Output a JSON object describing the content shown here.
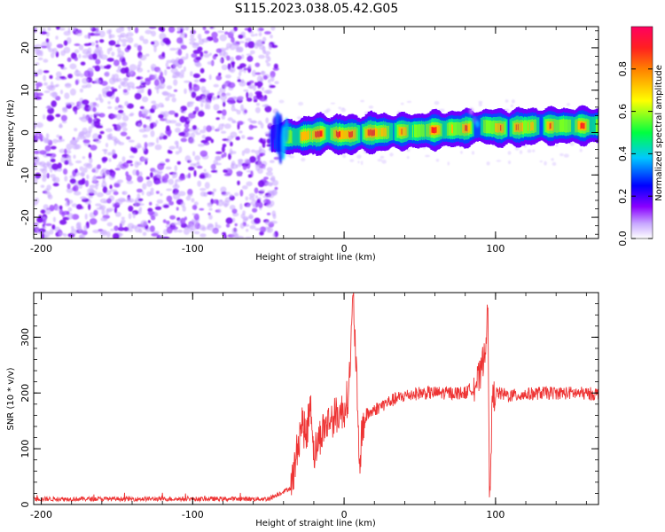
{
  "title": "S115.2023.038.05.42.G05",
  "chart_data": [
    {
      "type": "heatmap",
      "xlabel": "Height of straight line (km)",
      "ylabel": "Frequency (Hz)",
      "xlim": [
        -205,
        168
      ],
      "ylim": [
        -25,
        25
      ],
      "x_ticks": [
        -200,
        -100,
        0,
        100
      ],
      "y_ticks": [
        -20,
        -10,
        0,
        10,
        20
      ],
      "colorbar": {
        "label": "Normalized spectral amplitude",
        "range": [
          0,
          1
        ],
        "ticks": [
          0.0,
          0.2,
          0.4,
          0.6,
          0.8
        ],
        "colormap": [
          "#ffffff",
          "#8a00ff",
          "#0000ff",
          "#00c8ff",
          "#00ff40",
          "#ffff00",
          "#ff8000",
          "#ff0060"
        ]
      },
      "noise_region": {
        "x_range": [
          -205,
          -48
        ],
        "freq_range": [
          -25,
          25
        ],
        "amplitude": 0.1
      },
      "signal_track": [
        {
          "x": -48,
          "freq": -1.5,
          "amplitude": 0.3
        },
        {
          "x": -40,
          "freq": -1.0,
          "amplitude": 0.5
        },
        {
          "x": -30,
          "freq": -1.0,
          "amplitude": 0.9
        },
        {
          "x": -15,
          "freq": -0.2,
          "amplitude": 0.95
        },
        {
          "x": 0,
          "freq": -0.5,
          "amplitude": 0.9
        },
        {
          "x": 20,
          "freq": 0.0,
          "amplitude": 0.95
        },
        {
          "x": 40,
          "freq": 0.3,
          "amplitude": 0.7
        },
        {
          "x": 60,
          "freq": 0.6,
          "amplitude": 0.85
        },
        {
          "x": 80,
          "freq": 1.0,
          "amplitude": 0.8
        },
        {
          "x": 90,
          "freq": 1.5,
          "amplitude": 0.6
        },
        {
          "x": 105,
          "freq": 1.0,
          "amplitude": 0.9
        },
        {
          "x": 130,
          "freq": 1.6,
          "amplitude": 0.75
        },
        {
          "x": 150,
          "freq": 1.6,
          "amplitude": 0.8
        },
        {
          "x": 168,
          "freq": 1.6,
          "amplitude": 0.8
        }
      ]
    },
    {
      "type": "line",
      "xlabel": "Height of straight line (km)",
      "ylabel": "SNR (10 * v/v)",
      "xlim": [
        -205,
        168
      ],
      "ylim": [
        0,
        380
      ],
      "x_ticks": [
        -200,
        -100,
        0,
        100
      ],
      "y_ticks": [
        0,
        100,
        200,
        300
      ],
      "color": "#ee3333",
      "series": [
        {
          "x": [
            -205,
            -150,
            -100,
            -50,
            -35,
            -32,
            -28,
            -25,
            -22,
            -20,
            -15,
            -10,
            -5,
            0,
            3,
            6,
            8,
            10,
            12,
            15,
            20,
            30,
            40,
            50,
            60,
            70,
            80,
            85,
            90,
            93,
            95,
            96,
            98,
            100,
            110,
            130,
            150,
            168
          ],
          "y": [
            10,
            10,
            10,
            10,
            30,
            80,
            150,
            120,
            190,
            90,
            130,
            150,
            160,
            170,
            200,
            370,
            250,
            60,
            140,
            160,
            170,
            185,
            195,
            200,
            200,
            200,
            200,
            210,
            230,
            280,
            345,
            10,
            190,
            200,
            195,
            200,
            200,
            198
          ]
        }
      ]
    }
  ]
}
